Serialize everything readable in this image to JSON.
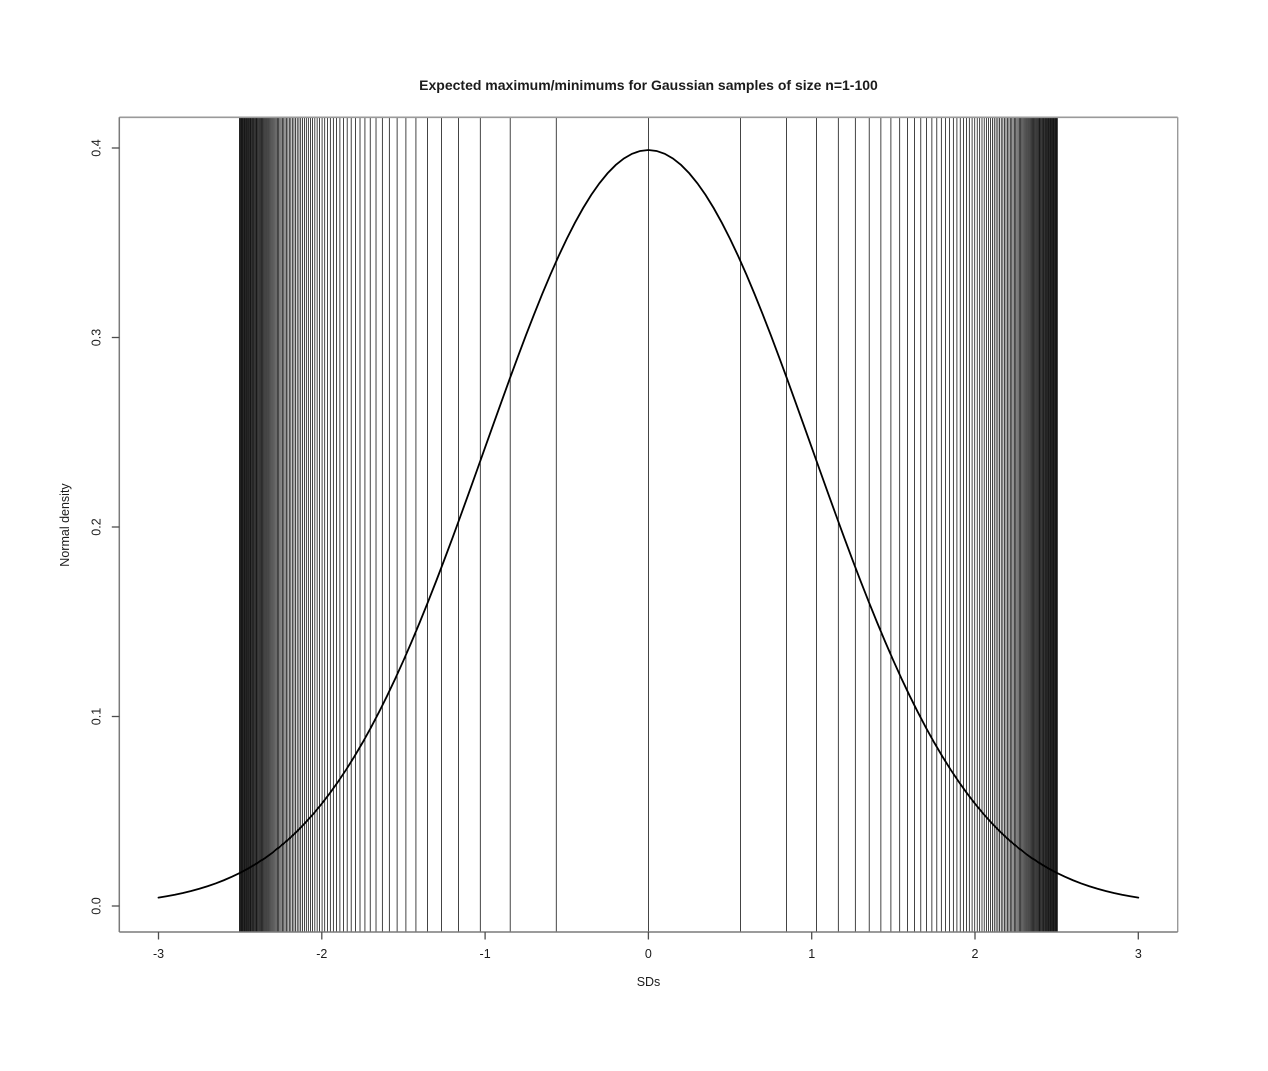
{
  "figure": {
    "background": "#ffffff"
  },
  "chart_data": {
    "type": "line",
    "title": "Expected maximum/minimums for Gaussian samples of size n=1-100",
    "xlabel": "SDs",
    "ylabel": "Normal density",
    "x_ticks": [
      -3,
      -2,
      -1,
      0,
      1,
      2,
      3
    ],
    "x_tick_labels": [
      "-3",
      "-2",
      "-1",
      "0",
      "1",
      "2",
      "3"
    ],
    "y_tick_values": [
      0.0,
      0.1,
      0.2,
      0.3,
      0.4
    ],
    "y_tick_labels": [
      "0.0",
      "0.1",
      "0.2",
      "0.3",
      "0.4"
    ],
    "xlim": [
      -3.24,
      3.24
    ],
    "ylim": [
      -0.0164,
      0.4167
    ],
    "grid": false,
    "legend": false,
    "curve": {
      "name": "standard normal density",
      "formula": "y = exp(-x^2/2) / sqrt(2*pi)",
      "x_range": [
        -3,
        3
      ],
      "peak_y": 0.3989
    },
    "vlines": {
      "description": "Vertical lines at the expected maximum of a standard Gaussian sample of size n, mirrored for expected minimum, n = 1 to 100",
      "n_min": 1,
      "n_max": 100,
      "mirrored": true,
      "expected_max": [
        0.0,
        0.5642,
        0.8463,
        1.0294,
        1.163,
        1.2672,
        1.3522,
        1.4236,
        1.485,
        1.5388,
        1.5864,
        1.6292,
        1.668,
        1.7034,
        1.7359,
        1.766,
        1.7939,
        1.82,
        1.8445,
        1.8675,
        1.8892,
        1.9097,
        1.9292,
        1.9477,
        1.9653,
        1.9822,
        1.9983,
        2.0137,
        2.0285,
        2.0428,
        2.0565,
        2.0697,
        2.0824,
        2.0947,
        2.1066,
        2.1181,
        2.1293,
        2.1401,
        2.1505,
        2.1607,
        2.1706,
        2.1803,
        2.1897,
        2.1988,
        2.2077,
        2.2164,
        2.2249,
        2.2331,
        2.2412,
        2.2491,
        2.2568,
        2.2644,
        2.2718,
        2.279,
        2.2861,
        2.293,
        2.2998,
        2.3064,
        2.3129,
        2.3193,
        2.3256,
        2.3317,
        2.3378,
        2.3437,
        2.3495,
        2.3552,
        2.3608,
        2.3663,
        2.3718,
        2.3771,
        2.3823,
        2.3875,
        2.3925,
        2.3975,
        2.4024,
        2.4073,
        2.412,
        2.4167,
        2.4213,
        2.4258,
        2.4303,
        2.4347,
        2.439,
        2.4433,
        2.4475,
        2.4517,
        2.4558,
        2.4598,
        2.4638,
        2.4677,
        2.4716,
        2.4755,
        2.4792,
        2.483,
        2.4866,
        2.4903,
        2.4939,
        2.4974,
        2.5009,
        2.5044
      ]
    },
    "colors": {
      "curve": "#000000",
      "vline": "#161616",
      "box": "#7a7a7a",
      "tick": "#4d4d4d",
      "text": "#1c1c1c"
    }
  }
}
